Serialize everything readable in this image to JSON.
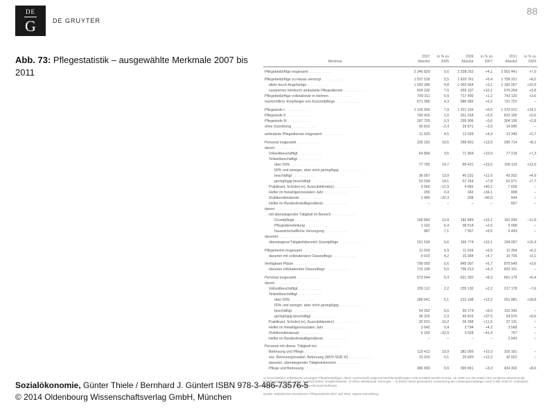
{
  "header": {
    "logo_small": "DE",
    "logo_big": "G",
    "publisher": "DE GRUYTER",
    "page_number": "88"
  },
  "caption": {
    "label": "Abb. 73:",
    "text": "Pflegestatistik – ausgewählte Merkmale 2007 bis 2011"
  },
  "table": {
    "head": {
      "col0": "Merkmal",
      "col1a": "2007",
      "col1b": "Absolut",
      "col2a": "in % zu",
      "col2b": "2005",
      "col3a": "2009",
      "col3b": "Absolut",
      "col4a": "in % zu",
      "col4b": "2007",
      "col5a": "2011",
      "col5b": "Absolut",
      "col6a": "in % zu",
      "col6b": "2009"
    },
    "rows": [
      {
        "cls": "section-gap",
        "label": "Pflegebedürftige insgesamt",
        "v": [
          "2 246 829",
          "5,6",
          "2 338 252",
          "+4,1",
          "2 501 441",
          "+7,0"
        ]
      },
      {
        "cls": "section-gap",
        "label": "Pflegebedürftige zu Hause versorgt",
        "v": [
          "1 537 518",
          "5,5",
          "1 620 761",
          "+5,4",
          "1 758 321",
          "+8,5"
        ]
      },
      {
        "cls": "indent1",
        "label": "allein durch Angehörige",
        "v": [
          "1 033 286",
          "4,8",
          "1 065 564",
          "+3,1",
          "1 182 057",
          "+10,9"
        ]
      },
      {
        "cls": "indent1",
        "label": "zusammen mit/durch ambulante Pflegedienste",
        "v": [
          "504 232",
          "7,0",
          "555 197",
          "+10,1",
          "576 264",
          "+3,8"
        ]
      },
      {
        "cls": "",
        "label": "Pflegebedürftige vollstationär in Heimen",
        "v": [
          "709 311",
          "5,9",
          "717 490",
          "+1,2",
          "743 120",
          "+3,6"
        ]
      },
      {
        "cls": "",
        "label": "nachrichtlich: Empfänger von Kurzzeitpflege",
        "v": [
          "671 080",
          "4,3",
          "686 082",
          "+2,2",
          "721 721",
          "–"
        ]
      },
      {
        "cls": "section-gap",
        "label": "Pflegestufe I",
        "v": [
          "1 126 900",
          "7,9",
          "1 201 156",
          "+6,6",
          "1 370 012",
          "+14,1"
        ]
      },
      {
        "cls": "",
        "label": "Pflegestufe II",
        "v": [
          "790 416",
          "1,0",
          "811 318",
          "+2,6",
          "815 156",
          "+0,5"
        ]
      },
      {
        "cls": "",
        "label": "Pflegestufe III",
        "v": [
          "297 703",
          "0,3",
          "295 906",
          "–0,6",
          "304 156",
          "+2,8"
        ]
      },
      {
        "cls": "",
        "label": "ohne Zuordnung",
        "v": [
          "30 810",
          "–2,4",
          "29 871",
          "–3,0",
          "14 990",
          "–"
        ]
      },
      {
        "cls": "section-gap",
        "label": "ambulante Pflegedienste insgesamt",
        "v": [
          "11 529",
          "4,5",
          "12 026",
          "+4,3",
          "12 349",
          "+2,7"
        ]
      },
      {
        "cls": "section-gap",
        "label": "Personal insgesamt",
        "v": [
          "236 162",
          "10,5",
          "268 891",
          "+13,9",
          "290 714",
          "+8,1"
        ]
      },
      {
        "cls": "",
        "label": "davon:",
        "v": [
          "",
          "",
          "",
          "",
          "",
          ""
        ]
      },
      {
        "cls": "indent1",
        "label": "Vollzeitbeschäftigt",
        "v": [
          "64 894",
          "3,5",
          "71 964",
          "+10,9",
          "77 218",
          "+7,3"
        ]
      },
      {
        "cls": "indent1",
        "label": "Teilzeitbeschäftigt",
        "v": [
          "",
          "",
          "",
          "",
          "",
          ""
        ]
      },
      {
        "cls": "indent2",
        "label": "über 50%",
        "v": [
          "77 782",
          "14,7",
          "89 421",
          "+15,0",
          "100 119",
          "+12,0"
        ]
      },
      {
        "cls": "indent2",
        "label": "50% und weniger, aber nicht geringfügig",
        "v": [
          "",
          "",
          "",
          "",
          "",
          ""
        ]
      },
      {
        "cls": "indent2",
        "label": "beschäftigt",
        "v": [
          "36 057",
          "13,9",
          "40 231",
          "+11,6",
          "42 202",
          "+4,9"
        ]
      },
      {
        "cls": "indent2",
        "label": "geringfügig beschäftigt",
        "v": [
          "53 034",
          "14,1",
          "57 154",
          "+7,8",
          "61 571",
          "+7,7"
        ]
      },
      {
        "cls": "indent1",
        "label": "Praktikant, Schüler(-in), Auszubildende(r)",
        "v": [
          "3 560",
          "–11,9",
          "4 992",
          "+40,2",
          "7 036",
          "–"
        ]
      },
      {
        "cls": "indent1",
        "label": "Helfer im freiwilligen/sozialen Jahr",
        "v": [
          "255",
          "0,4",
          "342",
          "+34,1",
          "908",
          "–"
        ]
      },
      {
        "cls": "indent1",
        "label": "Zivildienstleistende",
        "v": [
          "1 480",
          "–32,3",
          "208",
          "–86,0",
          "544",
          "–"
        ]
      },
      {
        "cls": "indent1",
        "label": "Helfer im Bundesfreiwilligendienst",
        "v": [
          "–",
          "–",
          "–",
          "–",
          "697",
          "–"
        ]
      },
      {
        "cls": "",
        "label": "davon:",
        "v": [
          "",
          "",
          "",
          "",
          "",
          ""
        ]
      },
      {
        "cls": "indent1",
        "label": "mit überwiegender Tätigkeit im Bereich",
        "v": [
          "",
          "",
          "",
          "",
          "",
          ""
        ]
      },
      {
        "cls": "indent2",
        "label": "Grundpflege",
        "v": [
          "158 843",
          "12,8",
          "182 849",
          "+15,1",
          "161 330",
          "–11,8"
        ]
      },
      {
        "cls": "indent2",
        "label": "Pflegedienstleitung",
        "v": [
          "1 162",
          "6,4",
          "38 514",
          "+2,5",
          "5 098",
          "–"
        ]
      },
      {
        "cls": "indent2",
        "label": "hauswirtschaftliche Versorgung",
        "v": [
          "987",
          "7,1",
          "7 557",
          "+9,5",
          "5 443",
          "–"
        ]
      },
      {
        "cls": "",
        "label": "darunter:",
        "v": [
          "",
          "",
          "",
          "",
          "",
          ""
        ]
      },
      {
        "cls": "indent1",
        "label": "überwiegend Tätigkeitsbereich Grundpflege",
        "v": [
          "151 534",
          "6,6",
          "166 774",
          "+10,1",
          "194 097",
          "+16,4"
        ]
      },
      {
        "cls": "section-gap",
        "label": "Pflegeheime insgesamt",
        "v": [
          "11 029",
          "5,9",
          "11 634",
          "+5,5",
          "12 354",
          "+6,2"
        ]
      },
      {
        "cls": "indent1",
        "label": "darunter mit vollstationärer Dauerpflege",
        "v": [
          "9 919",
          "4,2",
          "10 384",
          "+4,7",
          "10 706",
          "+3,1"
        ]
      },
      {
        "cls": "section-gap",
        "label": "Verfügbare Plätze",
        "v": [
          "799 059",
          "5,6",
          "845 007",
          "+5,7",
          "875 549",
          "+3,6"
        ]
      },
      {
        "cls": "indent1",
        "label": "darunter vollstationäre Dauerpflege",
        "v": [
          "713 195",
          "5,0",
          "796 213",
          "+4,3",
          "820 101",
          "–"
        ]
      },
      {
        "cls": "section-gap",
        "label": "Personal insgesamt",
        "v": [
          "573 544",
          "6,3",
          "621 392",
          "+8,3",
          "661 179",
          "+6,4"
        ]
      },
      {
        "cls": "",
        "label": "davon:",
        "v": [
          "",
          "",
          "",
          "",
          "",
          ""
        ]
      },
      {
        "cls": "indent1",
        "label": "Vollzeitbeschäftigt",
        "v": [
          "230 112",
          "2,2",
          "235 130",
          "+2,2",
          "217 178",
          "–7,6"
        ]
      },
      {
        "cls": "indent1",
        "label": "Teilzeitbeschäftigt",
        "v": [
          "",
          "",
          "",
          "",
          "",
          ""
        ]
      },
      {
        "cls": "indent2",
        "label": "über 50%",
        "v": [
          "189 041",
          "5,1",
          "212 198",
          "+12,2",
          "251 981",
          "+18,8"
        ]
      },
      {
        "cls": "indent2",
        "label": "50% und weniger, aber nicht geringfügig",
        "v": [
          "",
          "",
          "",
          "",
          "",
          ""
        ]
      },
      {
        "cls": "indent2",
        "label": "beschäftigt",
        "v": [
          "54 262",
          "5,6",
          "59 174",
          "+9,0",
          "101 343",
          "–"
        ]
      },
      {
        "cls": "indent2",
        "label": "geringfügig beschäftigt",
        "v": [
          "36 225",
          "2,3",
          "49 815",
          "+37,5",
          "54 575",
          "+9,6"
        ]
      },
      {
        "cls": "indent1",
        "label": "Praktikant, Schüler(-in), Auszubildende(r)",
        "v": [
          "32 531",
          "10,2",
          "36 258",
          "+11,5",
          "37 131",
          "–"
        ]
      },
      {
        "cls": "indent1",
        "label": "Helfer im freiwilligen/sozialen Jahr",
        "v": [
          "3 642",
          "0,4",
          "3 794",
          "+4,2",
          "3 568",
          "–"
        ]
      },
      {
        "cls": "indent1",
        "label": "Zivildienstleistende",
        "v": [
          "6 193",
          "–32,9",
          "3 628",
          "–41,4",
          "757",
          "–"
        ]
      },
      {
        "cls": "indent1",
        "label": "Helfer im Bundesfreiwilligendienst",
        "v": [
          "–",
          "–",
          "–",
          "–",
          "2 043",
          "–"
        ]
      },
      {
        "cls": "section-gap",
        "label": "Personal mit überw. Tätigkeit bei",
        "v": [
          "",
          "",
          "",
          "",
          "",
          ""
        ]
      },
      {
        "cls": "indent1",
        "label": "Betreuung und Pflege",
        "v": [
          "119 412",
          "10,9",
          "381 056",
          "+10,3",
          "102 161",
          "–"
        ]
      },
      {
        "cls": "indent1",
        "label": "soz. Betreuung/zusätzl. Betreuung (§87b SGB XI)",
        "v": [
          "23 010",
          "0,1",
          "25 820",
          "+12,2",
          "32 022",
          "–"
        ]
      },
      {
        "cls": "indent1",
        "label": "darunter: überwiegender Tätigkeitsbereich",
        "v": [
          "",
          "",
          "",
          "",
          "",
          ""
        ]
      },
      {
        "cls": "indent1",
        "label": "Pflege und Betreuung",
        "v": [
          "386 906",
          "0,9",
          "399 861",
          "+3,3",
          "434 302",
          "+8,6"
        ]
      }
    ],
    "footnotes": [
      "1) Einschließlich teilstationär versorgter Pflegebedürftiger, deren Gesamtzahl aufgrund Mehrfachzählungen nicht ermittelt werden konnte. Ab 2009 von den Daten des Vorjahres abweichende Erhebungsmerkmale, daher eingeschränkte Vergleichbarkeit. 2) Ohne teilstationär Versorgte. – 3) Bisher keine gesonderte Ausweisung der Leistungsempfänger nach § 45b SGB XI: Ambulante Pflege versorgt 2011 ohne diese Leistungsempfänger.",
      "Quelle: Statistisches Bundesamt: Pflegestatistik 2007 und 2011; eigene Darstellung."
    ]
  },
  "footer": {
    "line1a": "Sozialökonomie,",
    "line1b": "Günter Thiele / Bernhard J. Güntert ISBN 978-3-486-73576-5",
    "line2": "© 2014 Oldenbourg Wissenschaftsverlag GmbH, München"
  }
}
